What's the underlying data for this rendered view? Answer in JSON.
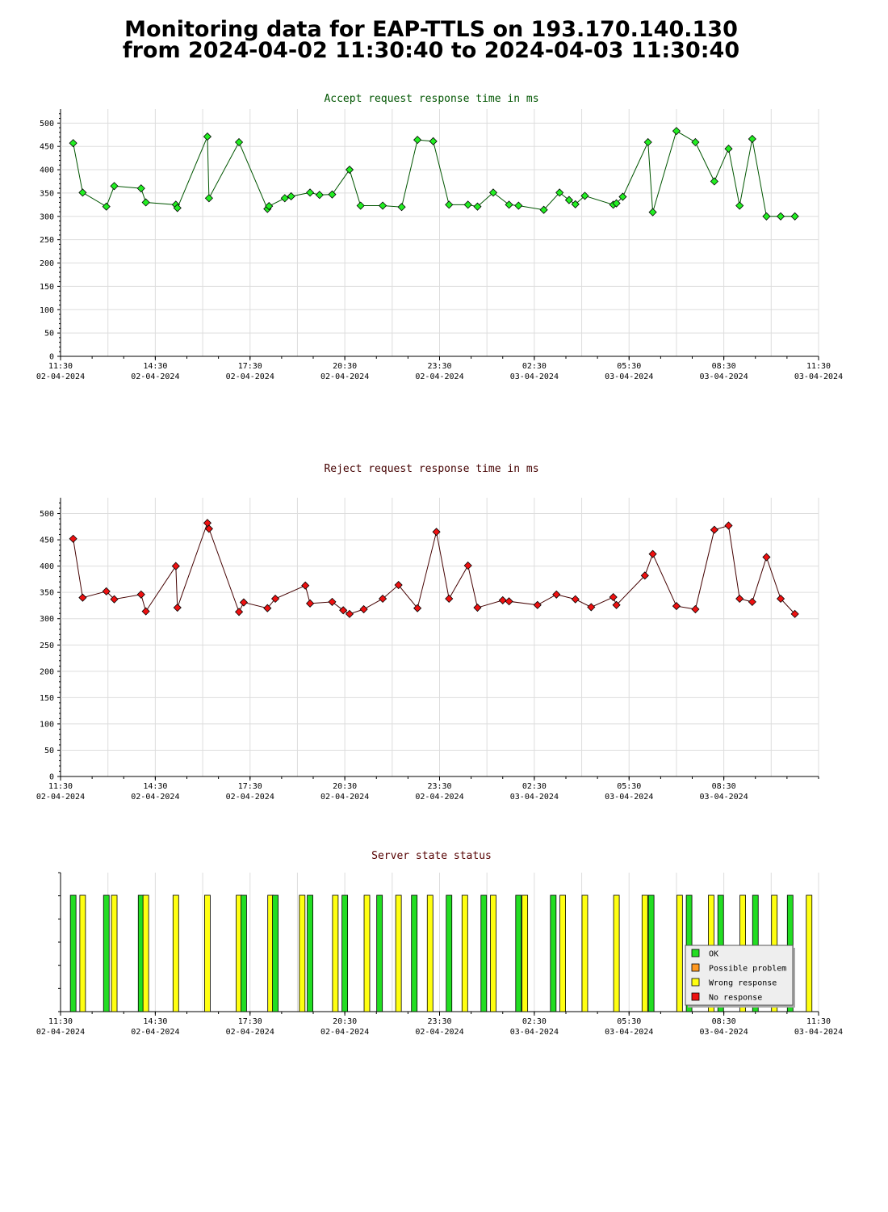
{
  "page": {
    "title_line1": "Monitoring data for EAP-TTLS on 193.170.140.130",
    "title_line2": "from 2024-04-02 11:30:40 to 2024-04-03 11:30:40"
  },
  "colors": {
    "accept_line": "#005500",
    "accept_marker": "#22ee22",
    "reject_line": "#440000",
    "reject_marker": "#ee1111",
    "status_title": "#550000",
    "ok": "#22dd22",
    "possible_problem": "#ff9922",
    "wrong_response": "#ffff11",
    "no_response": "#ee1111"
  },
  "chart_data": [
    {
      "type": "line",
      "title": "Accept request response time in ms",
      "x_unit": "hours since 11:30 02-04-2024",
      "xlim": [
        0,
        24
      ],
      "ylim": [
        0,
        530
      ],
      "yticks": [
        0,
        50,
        100,
        150,
        200,
        250,
        300,
        350,
        400,
        450,
        500
      ],
      "xtick_labels": [
        {
          "time": "11:30",
          "date": "02-04-2024"
        },
        {
          "time": "14:30",
          "date": "02-04-2024"
        },
        {
          "time": "17:30",
          "date": "02-04-2024"
        },
        {
          "time": "20:30",
          "date": "02-04-2024"
        },
        {
          "time": "23:30",
          "date": "02-04-2024"
        },
        {
          "time": "02:30",
          "date": "03-04-2024"
        },
        {
          "time": "05:30",
          "date": "03-04-2024"
        },
        {
          "time": "08:30",
          "date": "03-04-2024"
        },
        {
          "time": "11:30",
          "date": "03-04-2024"
        }
      ],
      "grid": true,
      "series": [
        {
          "x": [
            0.4,
            0.7,
            1.45,
            1.7,
            2.55,
            2.7,
            3.65,
            3.7,
            4.65,
            4.7,
            5.65,
            6.55,
            6.6,
            7.1,
            7.3,
            7.9,
            8.2,
            8.6,
            9.15,
            9.5,
            10.2,
            10.8,
            11.3,
            11.8,
            12.3,
            12.9,
            13.2,
            13.7,
            14.2,
            14.5,
            15.3,
            15.8,
            16.1,
            16.3,
            16.6,
            17.5,
            17.6,
            17.8,
            18.6,
            18.75,
            19.5,
            20.1,
            20.7,
            21.15,
            21.5,
            21.9,
            22.35,
            22.8,
            23.25
          ],
          "y": [
            457,
            351,
            321,
            365,
            360,
            330,
            325,
            318,
            471,
            339,
            459,
            316,
            322,
            339,
            343,
            351,
            346,
            347,
            400,
            323,
            323,
            320,
            464,
            461,
            325,
            325,
            321,
            351,
            325,
            323,
            314,
            351,
            335,
            326,
            344,
            325,
            328,
            342,
            459,
            309,
            483,
            459,
            375,
            445,
            323,
            466,
            300,
            300,
            300
          ]
        }
      ]
    },
    {
      "type": "line",
      "title": "Reject request response time in ms",
      "x_unit": "hours since 11:30 02-04-2024",
      "xlim": [
        0,
        24
      ],
      "ylim": [
        0,
        530
      ],
      "yticks": [
        0,
        50,
        100,
        150,
        200,
        250,
        300,
        350,
        400,
        450,
        500
      ],
      "xtick_labels": [
        {
          "time": "11:30",
          "date": "02-04-2024"
        },
        {
          "time": "14:30",
          "date": "02-04-2024"
        },
        {
          "time": "17:30",
          "date": "02-04-2024"
        },
        {
          "time": "20:30",
          "date": "02-04-2024"
        },
        {
          "time": "23:30",
          "date": "02-04-2024"
        },
        {
          "time": "02:30",
          "date": "03-04-2024"
        },
        {
          "time": "05:30",
          "date": "03-04-2024"
        },
        {
          "time": "08:30",
          "date": "03-04-2024"
        }
      ],
      "grid": true,
      "series": [
        {
          "x": [
            0.4,
            0.7,
            1.45,
            1.7,
            2.55,
            2.7,
            3.65,
            3.7,
            4.65,
            4.7,
            5.65,
            5.8,
            6.55,
            6.8,
            7.75,
            7.9,
            8.6,
            8.95,
            9.15,
            9.6,
            10.2,
            10.7,
            11.3,
            11.9,
            12.3,
            12.9,
            13.2,
            14.0,
            14.2,
            15.1,
            15.7,
            16.3,
            16.8,
            17.5,
            17.6,
            18.5,
            18.75,
            19.5,
            20.1,
            20.7,
            21.15,
            21.5,
            21.9,
            22.35,
            22.8,
            23.25
          ],
          "y": [
            452,
            340,
            352,
            337,
            346,
            314,
            400,
            321,
            482,
            471,
            313,
            331,
            320,
            338,
            363,
            329,
            332,
            316,
            309,
            318,
            338,
            364,
            320,
            465,
            338,
            401,
            321,
            335,
            333,
            326,
            346,
            337,
            322,
            341,
            326,
            382,
            423,
            324,
            318,
            469,
            477,
            338,
            332,
            417,
            338,
            309
          ]
        }
      ]
    },
    {
      "type": "bar",
      "title": "Server state status",
      "x_unit": "hours since 11:30 02-04-2024",
      "xlim": [
        0,
        24
      ],
      "xtick_labels": [
        {
          "time": "11:30",
          "date": "02-04-2024"
        },
        {
          "time": "14:30",
          "date": "02-04-2024"
        },
        {
          "time": "17:30",
          "date": "02-04-2024"
        },
        {
          "time": "20:30",
          "date": "02-04-2024"
        },
        {
          "time": "23:30",
          "date": "02-04-2024"
        },
        {
          "time": "02:30",
          "date": "03-04-2024"
        },
        {
          "time": "05:30",
          "date": "03-04-2024"
        },
        {
          "time": "08:30",
          "date": "03-04-2024"
        },
        {
          "time": "11:30",
          "date": "03-04-2024"
        }
      ],
      "legend_position": "bottom-right",
      "legend": [
        {
          "key": "ok",
          "label": "OK"
        },
        {
          "key": "possible_problem",
          "label": "Possible problem"
        },
        {
          "key": "wrong_response",
          "label": "Wrong response"
        },
        {
          "key": "no_response",
          "label": "No response"
        }
      ],
      "events": [
        {
          "x": 0.4,
          "state": "ok"
        },
        {
          "x": 0.7,
          "state": "wrong_response"
        },
        {
          "x": 1.45,
          "state": "ok"
        },
        {
          "x": 1.7,
          "state": "wrong_response"
        },
        {
          "x": 2.55,
          "state": "ok"
        },
        {
          "x": 2.7,
          "state": "wrong_response"
        },
        {
          "x": 3.65,
          "state": "wrong_response"
        },
        {
          "x": 4.65,
          "state": "wrong_response"
        },
        {
          "x": 5.65,
          "state": "wrong_response"
        },
        {
          "x": 5.8,
          "state": "ok"
        },
        {
          "x": 6.65,
          "state": "wrong_response"
        },
        {
          "x": 6.8,
          "state": "ok"
        },
        {
          "x": 7.65,
          "state": "wrong_response"
        },
        {
          "x": 7.9,
          "state": "ok"
        },
        {
          "x": 8.7,
          "state": "wrong_response"
        },
        {
          "x": 9.0,
          "state": "ok"
        },
        {
          "x": 9.7,
          "state": "wrong_response"
        },
        {
          "x": 10.1,
          "state": "ok"
        },
        {
          "x": 10.7,
          "state": "wrong_response"
        },
        {
          "x": 11.2,
          "state": "ok"
        },
        {
          "x": 11.7,
          "state": "wrong_response"
        },
        {
          "x": 12.3,
          "state": "ok"
        },
        {
          "x": 12.8,
          "state": "wrong_response"
        },
        {
          "x": 13.4,
          "state": "ok"
        },
        {
          "x": 13.7,
          "state": "wrong_response"
        },
        {
          "x": 14.5,
          "state": "ok"
        },
        {
          "x": 14.7,
          "state": "wrong_response"
        },
        {
          "x": 15.6,
          "state": "ok"
        },
        {
          "x": 15.9,
          "state": "wrong_response"
        },
        {
          "x": 16.6,
          "state": "wrong_response"
        },
        {
          "x": 17.6,
          "state": "wrong_response"
        },
        {
          "x": 18.5,
          "state": "wrong_response"
        },
        {
          "x": 18.7,
          "state": "ok"
        },
        {
          "x": 19.6,
          "state": "wrong_response"
        },
        {
          "x": 19.9,
          "state": "ok"
        },
        {
          "x": 20.6,
          "state": "wrong_response"
        },
        {
          "x": 20.9,
          "state": "ok"
        },
        {
          "x": 21.6,
          "state": "wrong_response"
        },
        {
          "x": 22.0,
          "state": "ok"
        },
        {
          "x": 22.6,
          "state": "wrong_response"
        },
        {
          "x": 23.1,
          "state": "ok"
        },
        {
          "x": 23.7,
          "state": "wrong_response"
        }
      ]
    }
  ]
}
